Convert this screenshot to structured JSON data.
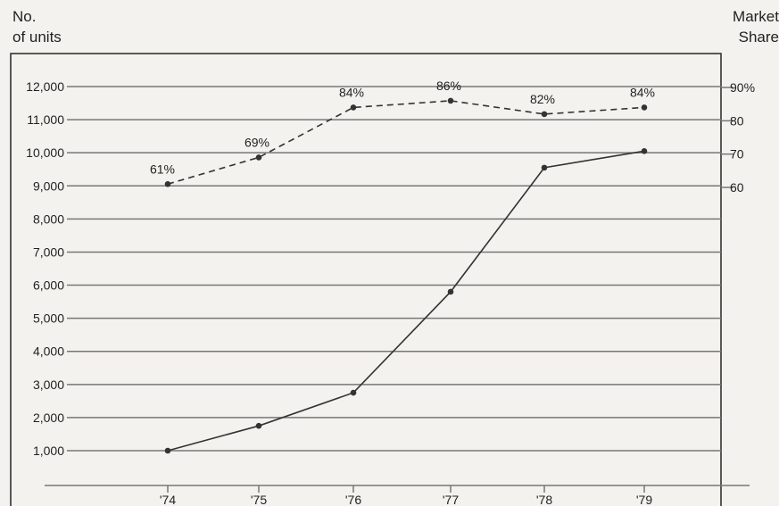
{
  "chart_data": {
    "type": "line",
    "categories": [
      "'74",
      "'75",
      "'76",
      "'77",
      "'78",
      "'79"
    ],
    "y_left": {
      "label_line1": "No.",
      "label_line2": "of units",
      "ticks": [
        1000,
        2000,
        3000,
        4000,
        5000,
        6000,
        7000,
        8000,
        9000,
        10000,
        11000,
        12000
      ],
      "tick_labels": [
        "1,000",
        "2,000",
        "3,000",
        "4,000",
        "5,000",
        "6,000",
        "7,000",
        "8,000",
        "9,000",
        "10,000",
        "11,000",
        "12,000"
      ]
    },
    "y_right": {
      "label_line1": "Market",
      "label_line2": "Share",
      "ticks": [
        60,
        70,
        80,
        90
      ],
      "tick_labels": [
        "60",
        "70",
        "80",
        "90%"
      ]
    },
    "series": [
      {
        "values": [
          1000,
          1750,
          2750,
          5800,
          9550,
          10050
        ],
        "axis": "left",
        "style": "solid"
      },
      {
        "values": [
          61,
          69,
          84,
          86,
          82,
          84
        ],
        "data_labels": [
          "61%",
          "69%",
          "84%",
          "86%",
          "82%",
          "84%"
        ],
        "axis": "right",
        "style": "dashed"
      }
    ],
    "grid": true
  }
}
